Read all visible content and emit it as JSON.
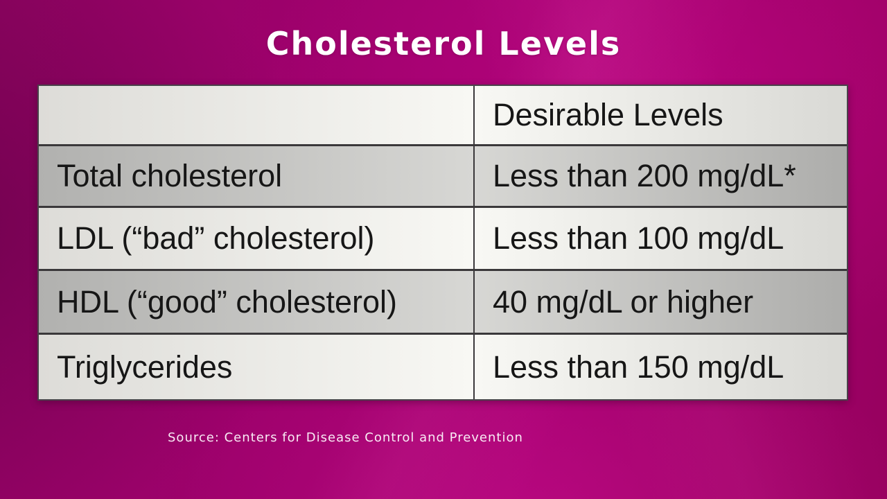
{
  "title": "Cholesterol Levels",
  "source_note": "Source: Centers for Disease Control and Prevention",
  "table": {
    "header": {
      "metric": "",
      "desirable": "Desirable Levels"
    },
    "rows": [
      {
        "label": "Total cholesterol",
        "value": "Less than 200 mg/dL*"
      },
      {
        "label": "LDL (“bad” cholesterol)",
        "value": "Less than 100 mg/dL"
      },
      {
        "label": "HDL (“good” cholesterol)",
        "value": "40 mg/dL or higher"
      },
      {
        "label": "Triglycerides",
        "value": "Less than 150 mg/dL"
      }
    ]
  },
  "colors": {
    "background_magenta": "#a10170",
    "row_light": "#f2f2ee",
    "row_shaded": "#c4c4c2",
    "table_grid": "#3a383a",
    "table_text": "#161616",
    "title_text": "#ffffff"
  }
}
